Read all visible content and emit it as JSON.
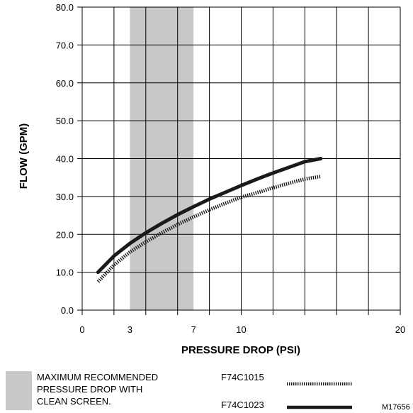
{
  "chart_data": {
    "type": "line",
    "title": "",
    "xlabel": "PRESSURE DROP (PSI)",
    "ylabel": "FLOW (GPM)",
    "xlim": [
      0,
      20
    ],
    "ylim": [
      0,
      80
    ],
    "xticks": [
      0,
      3,
      7,
      10,
      20
    ],
    "xtick_labels": [
      "0",
      "3",
      "7",
      "10",
      "20"
    ],
    "yticks": [
      0,
      10,
      20,
      30,
      40,
      50,
      60,
      70,
      80
    ],
    "ytick_labels": [
      "0.0",
      "10.0",
      "20.0",
      "30.0",
      "40.0",
      "50.0",
      "60.0",
      "70.0",
      "80.0"
    ],
    "grid": true,
    "grid_x_step": 2,
    "grid_y_step": 10,
    "shaded_band": {
      "x_range": [
        3,
        7
      ],
      "color": "#c8c8c8",
      "label": "MAXIMUM RECOMMENDED PRESSURE DROP WITH CLEAN SCREEN.",
      "label_lines": [
        "MAXIMUM RECOMMENDED",
        "PRESSURE DROP WITH",
        "CLEAN SCREEN."
      ]
    },
    "series": [
      {
        "name": "F74C1023",
        "style": "solid",
        "color": "#1a1a1a",
        "x": [
          1,
          2,
          3,
          4,
          5,
          6,
          7,
          8,
          9,
          10,
          11,
          12,
          13,
          14,
          15
        ],
        "y": [
          10.0,
          14.3,
          17.6,
          20.4,
          22.9,
          25.2,
          27.3,
          29.3,
          31.1,
          32.9,
          34.6,
          36.2,
          37.7,
          39.2,
          40.0
        ]
      },
      {
        "name": "F74C1015",
        "style": "dotted",
        "color": "#1a1a1a",
        "x": [
          1,
          2,
          3,
          4,
          5,
          6,
          7,
          8,
          9,
          10,
          11,
          12,
          13,
          14,
          15
        ],
        "y": [
          7.5,
          11.9,
          15.3,
          18.0,
          20.4,
          22.6,
          24.6,
          26.5,
          28.2,
          29.8,
          31.0,
          32.3,
          33.5,
          34.6,
          35.3
        ]
      }
    ],
    "figure_id": "M17656"
  }
}
